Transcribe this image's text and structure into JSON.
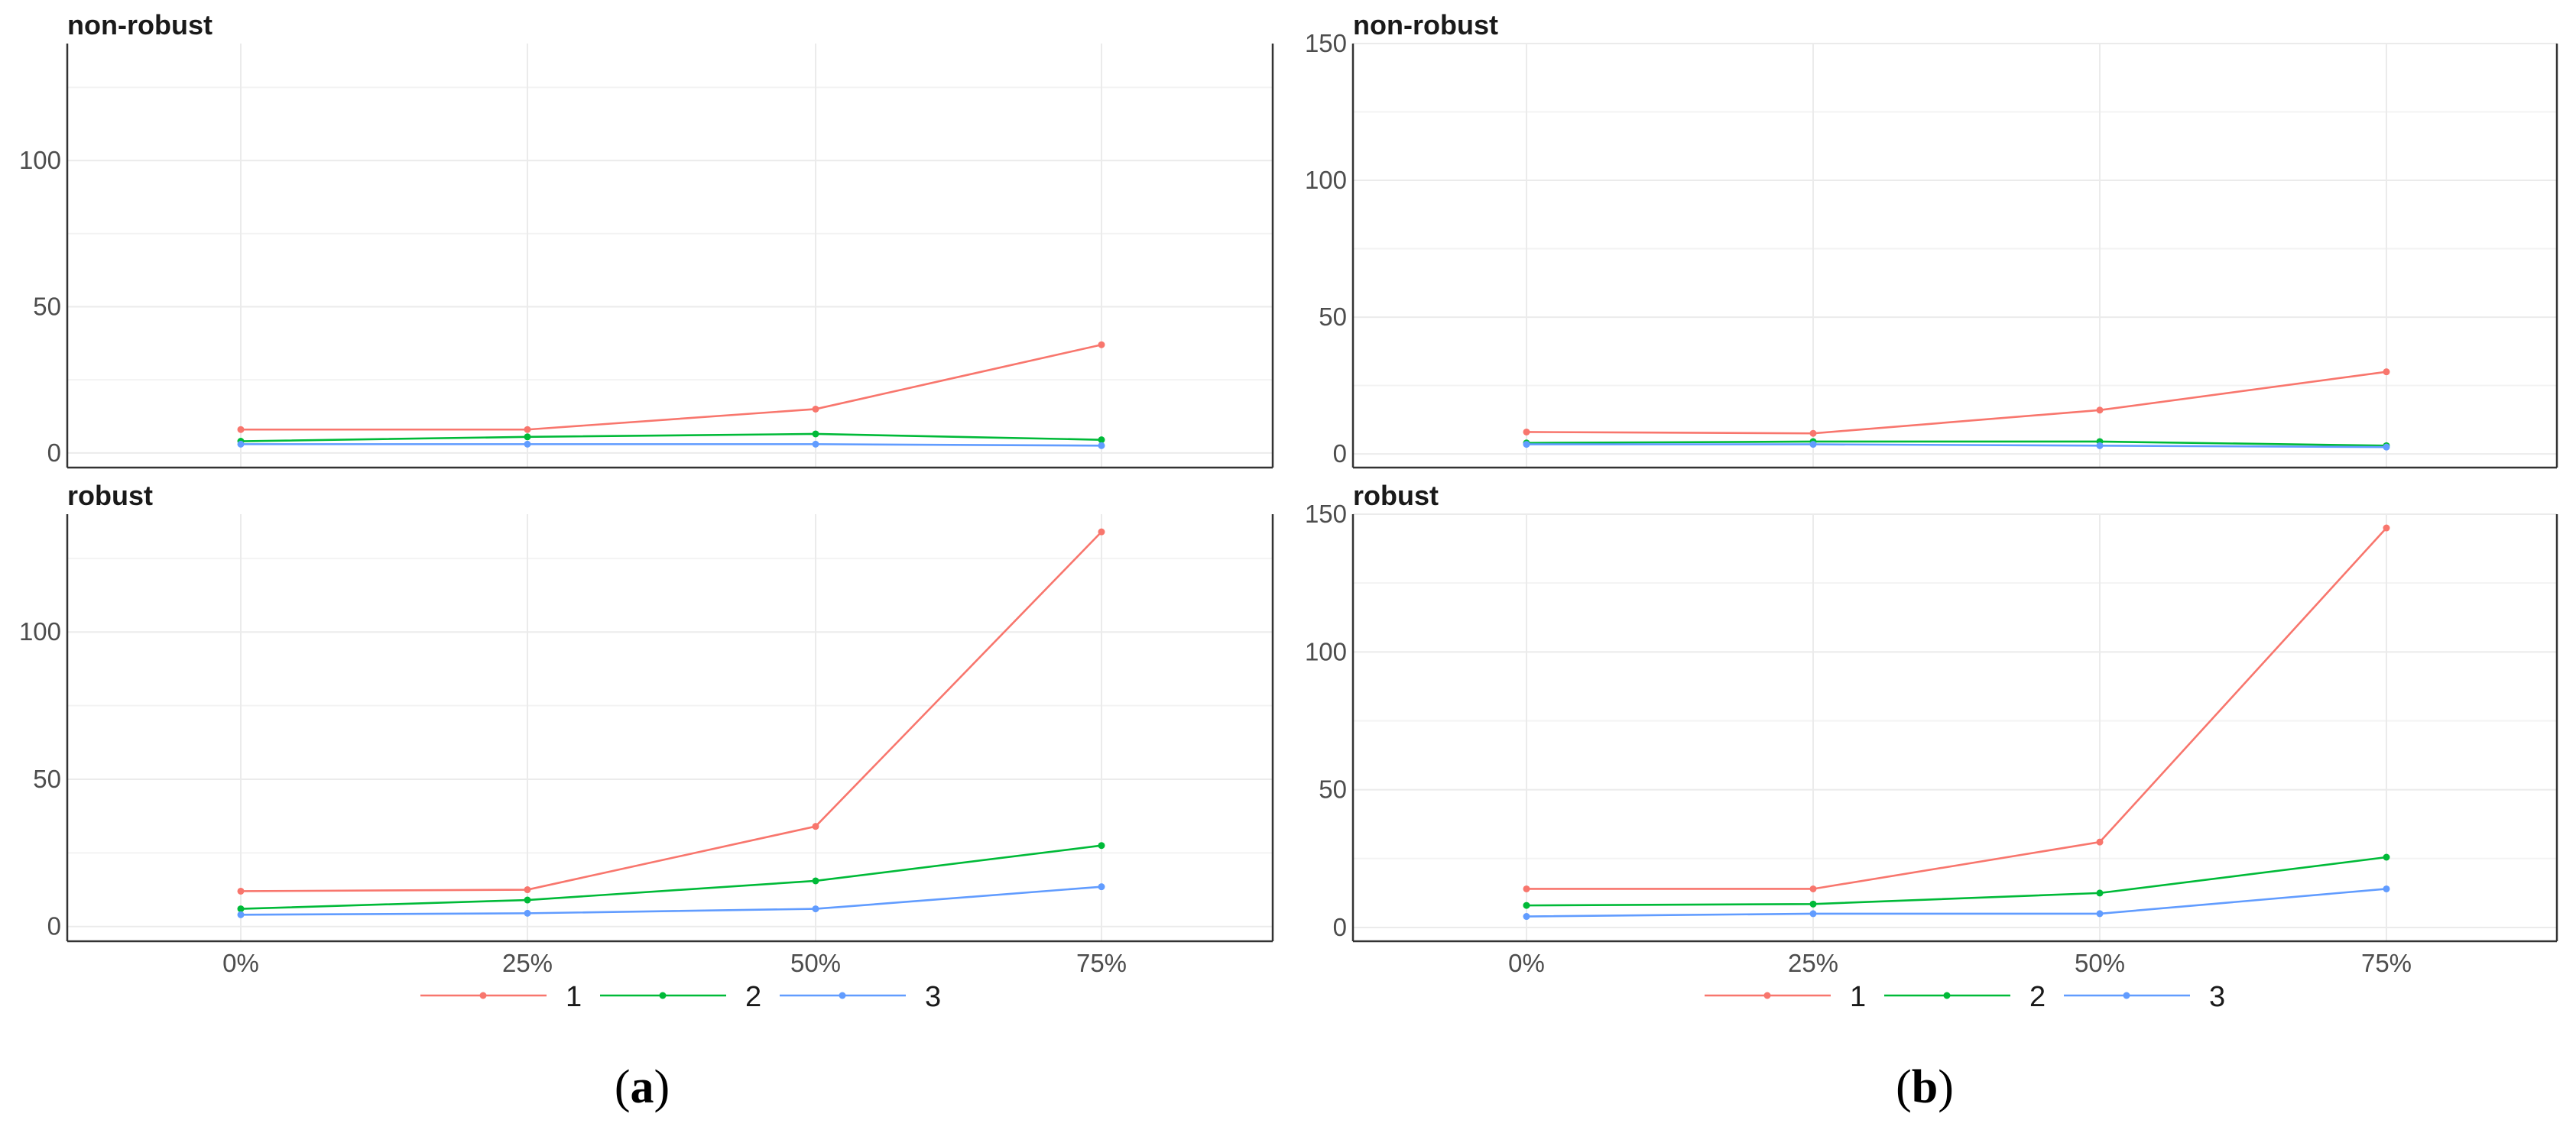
{
  "chart_data": [
    {
      "id": "a",
      "type": "line",
      "panel_label": {
        "open": "(",
        "letter": "a",
        "close": ")"
      },
      "categories": [
        "0%",
        "25%",
        "50%",
        "75%"
      ],
      "legend": {
        "placement": "bottom",
        "entries": [
          "1",
          "2",
          "3"
        ]
      },
      "ylim": [
        -5,
        140
      ],
      "yticks": [
        0,
        50,
        100
      ],
      "grid": true,
      "facets": [
        {
          "title": "non-robust",
          "series": [
            {
              "name": "1",
              "values": [
                8,
                8,
                15,
                37
              ]
            },
            {
              "name": "2",
              "values": [
                4,
                5.5,
                6.5,
                4.5
              ]
            },
            {
              "name": "3",
              "values": [
                3,
                3,
                3,
                2.5
              ]
            }
          ]
        },
        {
          "title": "robust",
          "series": [
            {
              "name": "1",
              "values": [
                12,
                12.5,
                34,
                134
              ]
            },
            {
              "name": "2",
              "values": [
                6,
                9,
                15.5,
                27.5
              ]
            },
            {
              "name": "3",
              "values": [
                4,
                4.5,
                6,
                13.5
              ]
            }
          ]
        }
      ]
    },
    {
      "id": "b",
      "type": "line",
      "panel_label": {
        "open": "(",
        "letter": "b",
        "close": ")"
      },
      "categories": [
        "0%",
        "25%",
        "50%",
        "75%"
      ],
      "legend": {
        "placement": "bottom",
        "entries": [
          "1",
          "2",
          "3"
        ]
      },
      "ylim": [
        -5,
        150
      ],
      "yticks": [
        0,
        50,
        100,
        150
      ],
      "grid": true,
      "facets": [
        {
          "title": "non-robust",
          "series": [
            {
              "name": "1",
              "values": [
                8,
                7.5,
                16,
                30
              ]
            },
            {
              "name": "2",
              "values": [
                4,
                4.5,
                4.5,
                3
              ]
            },
            {
              "name": "3",
              "values": [
                3.5,
                3.5,
                3,
                2.5
              ]
            }
          ]
        },
        {
          "title": "robust",
          "series": [
            {
              "name": "1",
              "values": [
                14,
                14,
                31,
                145
              ]
            },
            {
              "name": "2",
              "values": [
                8,
                8.5,
                12.5,
                25.5
              ]
            },
            {
              "name": "3",
              "values": [
                4,
                5,
                5,
                14
              ]
            }
          ]
        }
      ]
    }
  ],
  "colors": {
    "1": "#f8766d",
    "2": "#00ba38",
    "3": "#619cff"
  },
  "theme": {
    "gridline": "#ebebeb",
    "axis": "#333333",
    "tick_text": "#4d4d4d"
  }
}
